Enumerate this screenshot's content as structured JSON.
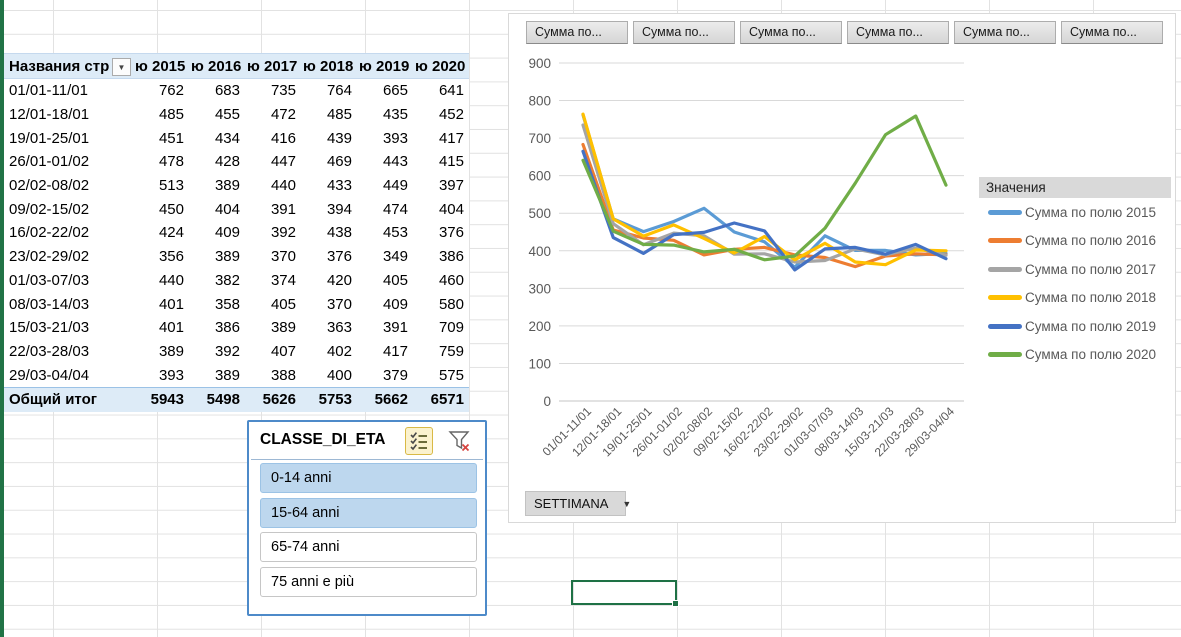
{
  "glyphs": {
    "dropdown": "▼"
  },
  "pivot_table": {
    "header": {
      "row_label": "Названия стр",
      "columns": [
        "ю 2015",
        "ю 2016",
        "ю 2017",
        "ю 2018",
        "ю 2019",
        "ю 2020"
      ]
    },
    "rows": [
      {
        "label": "01/01-11/01",
        "values": [
          762,
          683,
          735,
          764,
          665,
          641
        ]
      },
      {
        "label": "12/01-18/01",
        "values": [
          485,
          455,
          472,
          485,
          435,
          452
        ]
      },
      {
        "label": "19/01-25/01",
        "values": [
          451,
          434,
          416,
          439,
          393,
          417
        ]
      },
      {
        "label": "26/01-01/02",
        "values": [
          478,
          428,
          447,
          469,
          443,
          415
        ]
      },
      {
        "label": "02/02-08/02",
        "values": [
          513,
          389,
          440,
          433,
          449,
          397
        ]
      },
      {
        "label": "09/02-15/02",
        "values": [
          450,
          404,
          391,
          394,
          474,
          404
        ]
      },
      {
        "label": "16/02-22/02",
        "values": [
          424,
          409,
          392,
          438,
          453,
          376
        ]
      },
      {
        "label": "23/02-29/02",
        "values": [
          356,
          389,
          370,
          376,
          349,
          386
        ]
      },
      {
        "label": "01/03-07/03",
        "values": [
          440,
          382,
          374,
          420,
          405,
          460
        ]
      },
      {
        "label": "08/03-14/03",
        "values": [
          401,
          358,
          405,
          370,
          409,
          580
        ]
      },
      {
        "label": "15/03-21/03",
        "values": [
          401,
          386,
          389,
          363,
          391,
          709
        ]
      },
      {
        "label": "22/03-28/03",
        "values": [
          389,
          392,
          407,
          402,
          417,
          759
        ]
      },
      {
        "label": "29/03-04/04",
        "values": [
          393,
          389,
          388,
          400,
          379,
          575
        ]
      }
    ],
    "total": {
      "label": "Общий итог",
      "values": [
        5943,
        5498,
        5626,
        5753,
        5662,
        6571
      ]
    }
  },
  "chart": {
    "field_buttons": [
      "Сумма по...",
      "Сумма по...",
      "Сумма по...",
      "Сумма по...",
      "Сумма по...",
      "Сумма по..."
    ],
    "legend_title": "Значения",
    "axis_button": "SETTIMANA"
  },
  "chart_data": {
    "type": "line",
    "title": "",
    "xlabel": "",
    "ylabel": "",
    "categories": [
      "01/01-11/01",
      "12/01-18/01",
      "19/01-25/01",
      "26/01-01/02",
      "02/02-08/02",
      "09/02-15/02",
      "16/02-22/02",
      "23/02-29/02",
      "01/03-07/03",
      "08/03-14/03",
      "15/03-21/03",
      "22/03-28/03",
      "29/03-04/04"
    ],
    "series": [
      {
        "name": "Сумма по полю 2015",
        "color": "#5B9BD5",
        "values": [
          762,
          485,
          451,
          478,
          513,
          450,
          424,
          356,
          440,
          401,
          401,
          389,
          393
        ]
      },
      {
        "name": "Сумма по полю 2016",
        "color": "#ED7D31",
        "values": [
          683,
          455,
          434,
          428,
          389,
          404,
          409,
          389,
          382,
          358,
          386,
          392,
          389
        ]
      },
      {
        "name": "Сумма по полю 2017",
        "color": "#A5A5A5",
        "values": [
          735,
          472,
          416,
          447,
          440,
          391,
          392,
          370,
          374,
          405,
          389,
          407,
          388
        ]
      },
      {
        "name": "Сумма по полю 2018",
        "color": "#FFC000",
        "values": [
          764,
          485,
          439,
          469,
          433,
          394,
          438,
          376,
          420,
          370,
          363,
          402,
          400
        ]
      },
      {
        "name": "Сумма по полю 2019",
        "color": "#4472C4",
        "values": [
          665,
          435,
          393,
          443,
          449,
          474,
          453,
          349,
          405,
          409,
          391,
          417,
          379
        ]
      },
      {
        "name": "Сумма по полю 2020",
        "color": "#70AD47",
        "values": [
          641,
          452,
          417,
          415,
          397,
          404,
          376,
          386,
          460,
          580,
          709,
          759,
          575
        ]
      }
    ],
    "ylim": [
      0,
      900
    ],
    "ytick_step": 100,
    "grid": true,
    "legend_position": "right",
    "x_label_rotation": -45
  },
  "slicer": {
    "title": "CLASSE_DI_ETA",
    "icons": [
      {
        "name": "multi-select-icon"
      },
      {
        "name": "clear-filter-icon"
      }
    ],
    "items": [
      {
        "label": "0-14 anni",
        "selected": true
      },
      {
        "label": "15-64 anni",
        "selected": true
      },
      {
        "label": "65-74 anni",
        "selected": false
      },
      {
        "label": "75 anni e più",
        "selected": false
      }
    ]
  },
  "colors": {
    "excel_green": "#217346",
    "pivot_header_bg": "#DDEBF7",
    "slicer_selected_bg": "#BDD7EE",
    "slicer_border": "#4D8AC9",
    "chart_gridline": "#D9D9D9",
    "axis_text": "#595959"
  }
}
